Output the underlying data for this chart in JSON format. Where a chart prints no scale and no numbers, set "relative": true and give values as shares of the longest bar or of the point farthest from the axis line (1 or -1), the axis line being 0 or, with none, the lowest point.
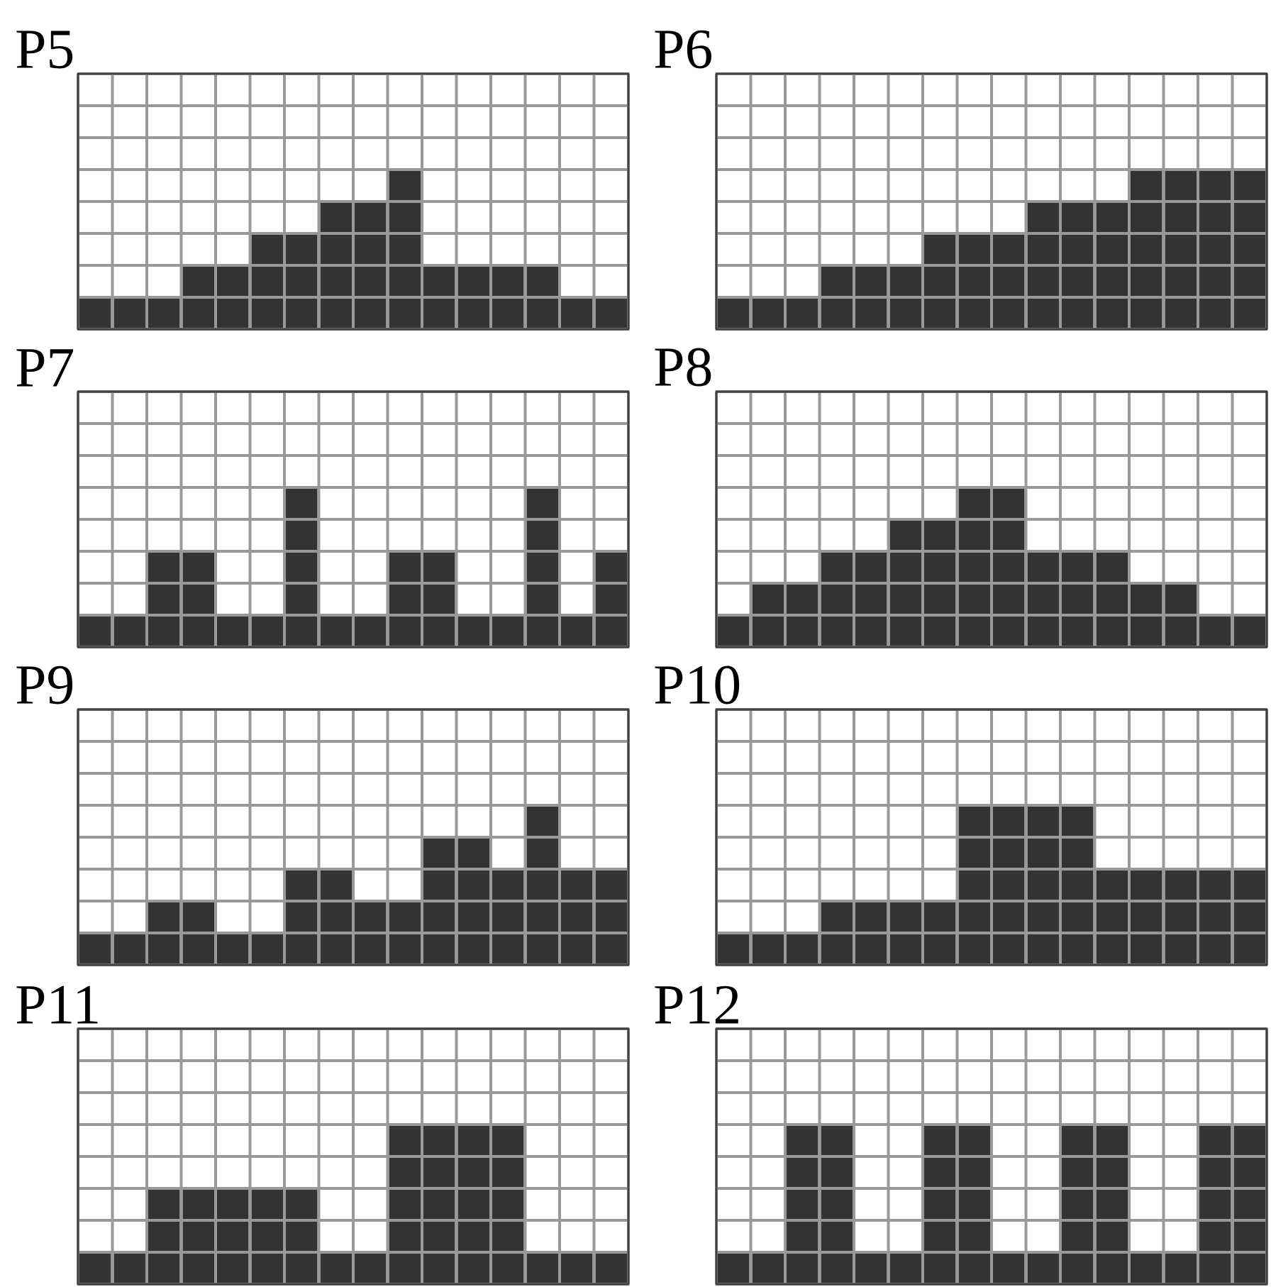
{
  "chart_data": [
    {
      "type": "bar",
      "title": "P5",
      "categories": [
        null,
        null,
        null,
        null,
        null,
        null,
        null,
        null,
        null,
        null,
        null,
        null,
        null,
        null,
        null,
        null
      ],
      "values": [
        0.2,
        0.2,
        0.2,
        0.4,
        0.4,
        0.6,
        0.6,
        0.8,
        0.8,
        1,
        0.4,
        0.4,
        0.4,
        0.4,
        0.2,
        0.2
      ],
      "color": "#333333",
      "relative": true,
      "grid": true
    },
    {
      "type": "bar",
      "title": "P6",
      "categories": [
        null,
        null,
        null,
        null,
        null,
        null,
        null,
        null,
        null,
        null,
        null,
        null,
        null,
        null,
        null,
        null
      ],
      "values": [
        0.2,
        0.2,
        0.2,
        0.4,
        0.4,
        0.4,
        0.6,
        0.6,
        0.6,
        0.8,
        0.8,
        0.8,
        1,
        1,
        1,
        1
      ],
      "color": "#333333",
      "relative": true,
      "grid": true
    },
    {
      "type": "bar",
      "title": "P7",
      "categories": [
        null,
        null,
        null,
        null,
        null,
        null,
        null,
        null,
        null,
        null,
        null,
        null,
        null,
        null,
        null,
        null
      ],
      "values": [
        0.2,
        0.2,
        0.6,
        0.6,
        0.2,
        0.2,
        1,
        0.2,
        0.2,
        0.6,
        0.6,
        0.2,
        0.2,
        1,
        0.2,
        0.6
      ],
      "color": "#333333",
      "relative": true,
      "grid": true
    },
    {
      "type": "bar",
      "title": "P8",
      "categories": [
        null,
        null,
        null,
        null,
        null,
        null,
        null,
        null,
        null,
        null,
        null,
        null,
        null,
        null,
        null,
        null
      ],
      "values": [
        0.2,
        0.4,
        0.4,
        0.6,
        0.6,
        0.8,
        0.8,
        1,
        1,
        0.6,
        0.6,
        0.6,
        0.4,
        0.4,
        0.2,
        0.2
      ],
      "color": "#333333",
      "relative": true,
      "grid": true
    },
    {
      "type": "bar",
      "title": "P9",
      "categories": [
        null,
        null,
        null,
        null,
        null,
        null,
        null,
        null,
        null,
        null,
        null,
        null,
        null,
        null,
        null,
        null
      ],
      "values": [
        0.2,
        0.2,
        0.4,
        0.4,
        0.2,
        0.2,
        0.6,
        0.6,
        0.4,
        0.4,
        0.8,
        0.8,
        0.6,
        1,
        0.6,
        0.6
      ],
      "color": "#333333",
      "relative": true,
      "grid": true
    },
    {
      "type": "bar",
      "title": "P10",
      "categories": [
        null,
        null,
        null,
        null,
        null,
        null,
        null,
        null,
        null,
        null,
        null,
        null,
        null,
        null,
        null,
        null
      ],
      "values": [
        0.2,
        0.2,
        0.2,
        0.4,
        0.4,
        0.4,
        0.4,
        1,
        1,
        1,
        1,
        0.6,
        0.6,
        0.6,
        0.6,
        0.6
      ],
      "color": "#333333",
      "relative": true,
      "grid": true
    },
    {
      "type": "bar",
      "title": "P11",
      "categories": [
        null,
        null,
        null,
        null,
        null,
        null,
        null,
        null,
        null,
        null,
        null,
        null,
        null,
        null,
        null,
        null
      ],
      "values": [
        0.2,
        0.2,
        0.6,
        0.6,
        0.6,
        0.6,
        0.6,
        0.2,
        0.2,
        1,
        1,
        1,
        1,
        0.2,
        0.2,
        0.2
      ],
      "color": "#333333",
      "relative": true,
      "grid": true
    },
    {
      "type": "bar",
      "title": "P12",
      "categories": [
        null,
        null,
        null,
        null,
        null,
        null,
        null,
        null,
        null,
        null,
        null,
        null,
        null,
        null,
        null,
        null
      ],
      "values": [
        0.2,
        0.2,
        1,
        1,
        0.2,
        0.2,
        1,
        1,
        0.2,
        0.2,
        1,
        1,
        0.2,
        0.2,
        1,
        1
      ],
      "color": "#333333",
      "relative": true,
      "grid": true
    }
  ]
}
